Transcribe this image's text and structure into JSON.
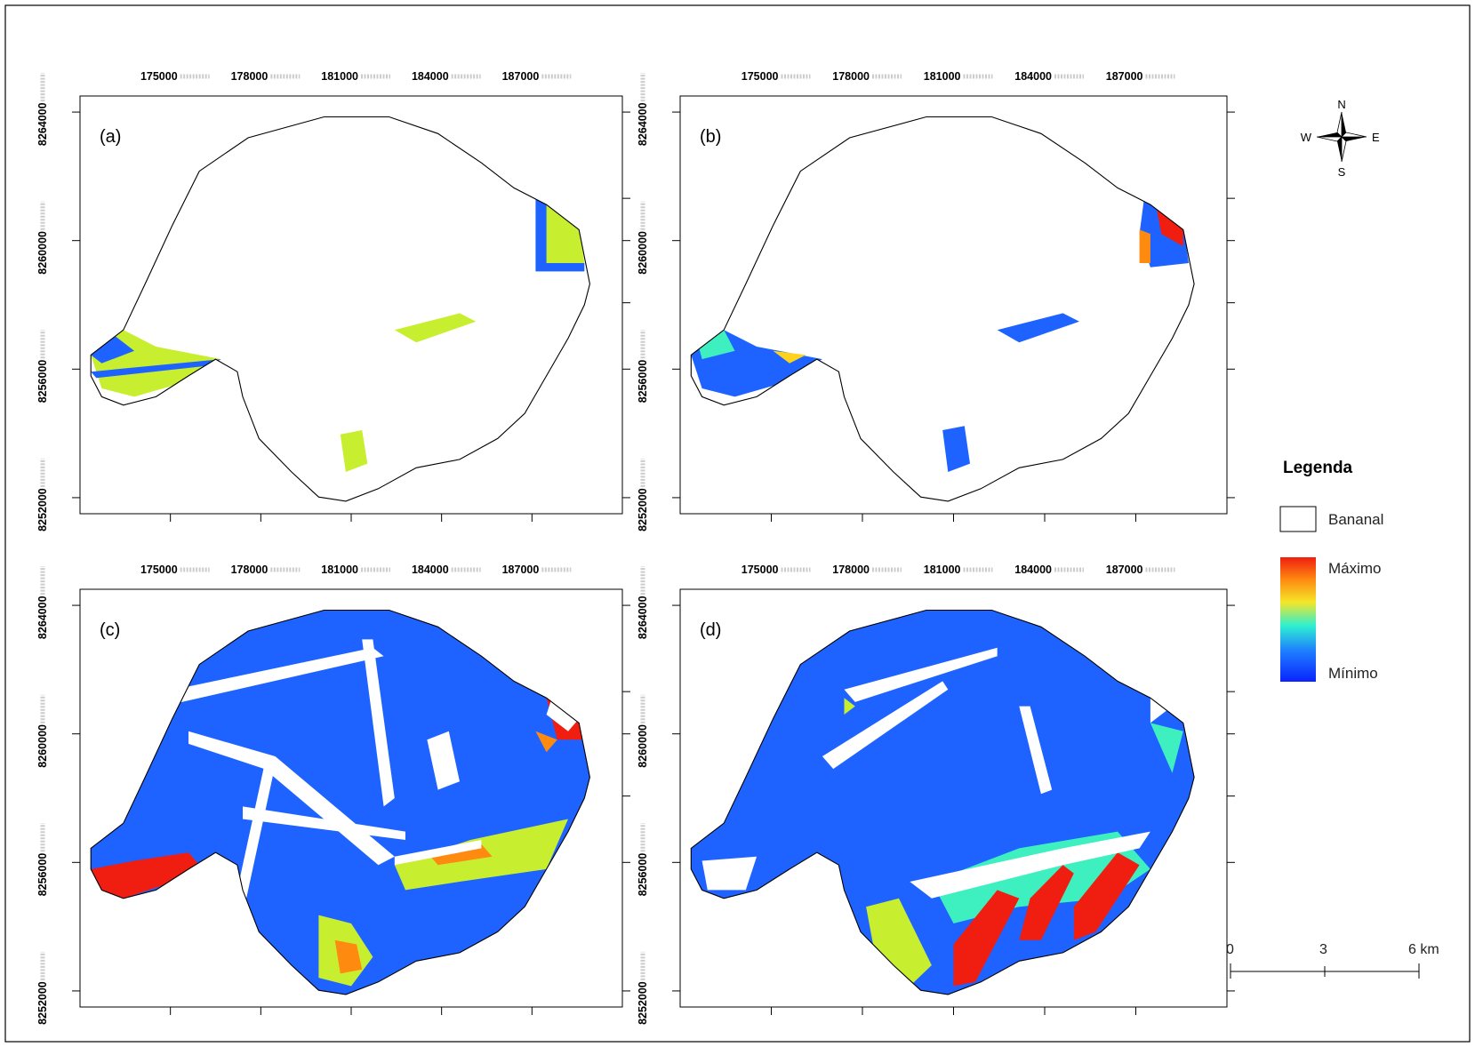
{
  "panels": [
    {
      "label": "(a)"
    },
    {
      "label": "(b)"
    },
    {
      "label": "(c)"
    },
    {
      "label": "(d)"
    }
  ],
  "axes": {
    "x_ticks": [
      "175000",
      "178000",
      "181000",
      "184000",
      "187000"
    ],
    "y_ticks": [
      "8264000",
      "8260000",
      "8256000",
      "8252000"
    ],
    "x_range": [
      172000,
      190000
    ],
    "y_range": [
      8251500,
      8264500
    ]
  },
  "north_arrow": {
    "n": "N",
    "s": "S",
    "e": "E",
    "w": "W"
  },
  "legend": {
    "title": "Legenda",
    "boundary_label": "Bananal",
    "max_label": "Máximo",
    "min_label": "Mínimo"
  },
  "scale_bar": {
    "labels": [
      "0",
      "3",
      "6 km"
    ]
  },
  "colors": {
    "ramp": [
      "#0a22ff",
      "#1e63ff",
      "#18c8f0",
      "#3ef0c0",
      "#c8ee30",
      "#ffd21e",
      "#ff8a10",
      "#f01e10"
    ],
    "boundary": "#000000"
  }
}
